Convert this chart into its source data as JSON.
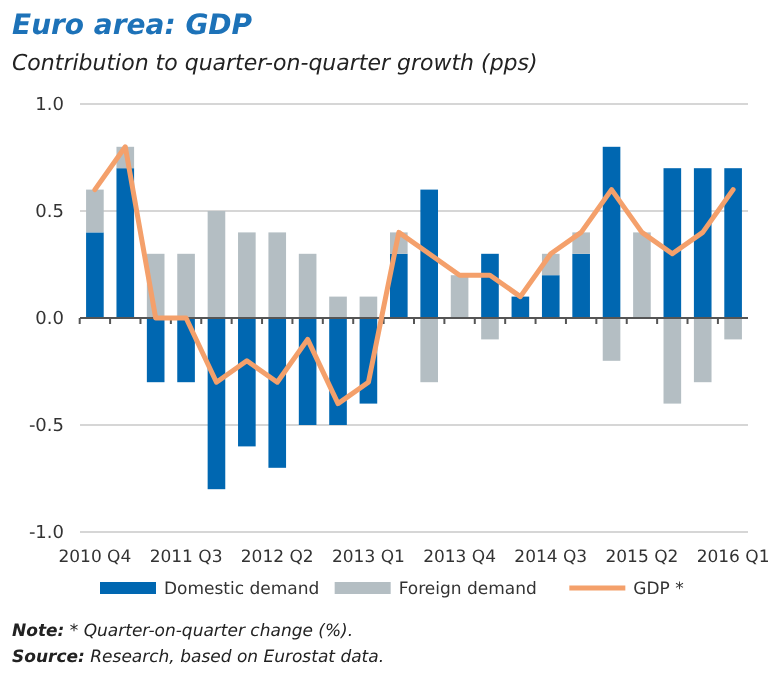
{
  "chart_data": {
    "type": "bar",
    "title": "Euro area: GDP",
    "subtitle": "Contribution to quarter-on-quarter growth (pps)",
    "categories": [
      "2010 Q4",
      null,
      null,
      "2011 Q3",
      null,
      null,
      "2012 Q2",
      null,
      null,
      "2013 Q1",
      null,
      null,
      "2013 Q4",
      null,
      null,
      "2014 Q3",
      null,
      null,
      "2015 Q2",
      null,
      null,
      "2016 Q1"
    ],
    "series": [
      {
        "name": "Domestic demand",
        "color": "#0067b1",
        "values": [
          0.4,
          0.7,
          -0.3,
          -0.3,
          -0.8,
          -0.6,
          -0.7,
          -0.5,
          -0.5,
          -0.4,
          0.3,
          0.6,
          0.0,
          0.3,
          0.1,
          0.2,
          0.3,
          0.8,
          0.0,
          0.7,
          0.7,
          0.7
        ]
      },
      {
        "name": "Foreign demand",
        "color": "#b4bec3",
        "values": [
          0.2,
          0.1,
          0.3,
          0.3,
          0.5,
          0.4,
          0.4,
          0.3,
          0.1,
          0.1,
          0.1,
          -0.3,
          0.2,
          -0.1,
          0.0,
          0.1,
          0.1,
          -0.2,
          0.4,
          -0.4,
          -0.3,
          -0.1
        ]
      },
      {
        "name": "GDP *",
        "type": "line",
        "color": "#f4a06b",
        "values": [
          0.6,
          0.8,
          0.0,
          0.0,
          -0.3,
          -0.2,
          -0.3,
          -0.1,
          -0.4,
          -0.3,
          0.4,
          0.3,
          0.2,
          0.2,
          0.1,
          0.3,
          0.4,
          0.6,
          0.4,
          0.3,
          0.4,
          0.6
        ]
      }
    ],
    "stacked": true,
    "ylim": [
      -1,
      1
    ],
    "yticks": [
      {
        "value": -1,
        "label": "-1.0"
      },
      {
        "value": -0.5,
        "label": "-0.5"
      },
      {
        "value": 0,
        "label": "0.0"
      },
      {
        "value": 0.5,
        "label": "0.5"
      },
      {
        "value": 1,
        "label": "1.0"
      }
    ],
    "grid": "y",
    "legend": "bottom",
    "marker": "none",
    "line_style": "solid",
    "annotations": [
      "Note: * Quarter-on-quarter change (%).",
      "Source: Research, based on Eurostat data."
    ]
  }
}
